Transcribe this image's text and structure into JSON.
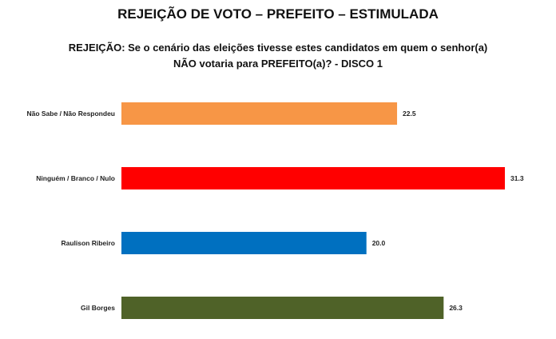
{
  "chart_data": {
    "type": "bar",
    "orientation": "horizontal",
    "title": "REJEIÇÃO DE VOTO – PREFEITO – ESTIMULADA",
    "subtitle_line1": "REJEIÇÃO: Se o cenário das eleições tivesse estes candidatos em quem o senhor(a)",
    "subtitle_line2": "NÃO votaria para PREFEITO(a)? - DISCO 1",
    "categories": [
      "Não Sabe / Não Respondeu",
      "Ninguém / Branco / Nulo",
      "Raulison Ribeiro",
      "Gil Borges"
    ],
    "values": [
      22.5,
      31.3,
      20.0,
      26.3
    ],
    "value_labels": [
      "22.5",
      "31.3",
      "20.0",
      "26.3"
    ],
    "colors": [
      "#f79646",
      "#ff0000",
      "#0070c0",
      "#4f6228"
    ],
    "xlabel": "",
    "ylabel": "",
    "grid": false,
    "legend": "none"
  }
}
